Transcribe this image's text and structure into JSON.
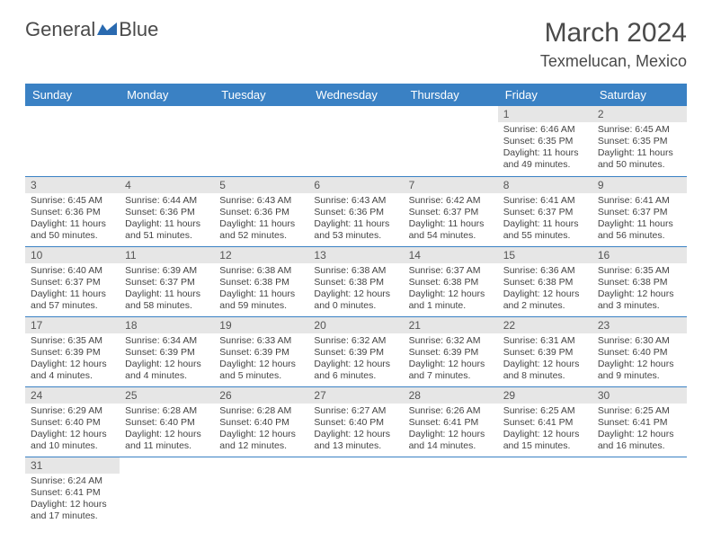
{
  "logo": {
    "text1": "General",
    "text2": "Blue",
    "color1": "#4a4a4a",
    "color2": "#2a6ab0"
  },
  "title": "March 2024",
  "location": "Texmelucan, Mexico",
  "header_bg": "#3a81c4",
  "header_fg": "#ffffff",
  "daynum_bg": "#e6e6e6",
  "row_border": "#3a81c4",
  "weekdays": [
    "Sunday",
    "Monday",
    "Tuesday",
    "Wednesday",
    "Thursday",
    "Friday",
    "Saturday"
  ],
  "weeks": [
    [
      null,
      null,
      null,
      null,
      null,
      {
        "n": "1",
        "sunrise": "Sunrise: 6:46 AM",
        "sunset": "Sunset: 6:35 PM",
        "daylight": "Daylight: 11 hours and 49 minutes."
      },
      {
        "n": "2",
        "sunrise": "Sunrise: 6:45 AM",
        "sunset": "Sunset: 6:35 PM",
        "daylight": "Daylight: 11 hours and 50 minutes."
      }
    ],
    [
      {
        "n": "3",
        "sunrise": "Sunrise: 6:45 AM",
        "sunset": "Sunset: 6:36 PM",
        "daylight": "Daylight: 11 hours and 50 minutes."
      },
      {
        "n": "4",
        "sunrise": "Sunrise: 6:44 AM",
        "sunset": "Sunset: 6:36 PM",
        "daylight": "Daylight: 11 hours and 51 minutes."
      },
      {
        "n": "5",
        "sunrise": "Sunrise: 6:43 AM",
        "sunset": "Sunset: 6:36 PM",
        "daylight": "Daylight: 11 hours and 52 minutes."
      },
      {
        "n": "6",
        "sunrise": "Sunrise: 6:43 AM",
        "sunset": "Sunset: 6:36 PM",
        "daylight": "Daylight: 11 hours and 53 minutes."
      },
      {
        "n": "7",
        "sunrise": "Sunrise: 6:42 AM",
        "sunset": "Sunset: 6:37 PM",
        "daylight": "Daylight: 11 hours and 54 minutes."
      },
      {
        "n": "8",
        "sunrise": "Sunrise: 6:41 AM",
        "sunset": "Sunset: 6:37 PM",
        "daylight": "Daylight: 11 hours and 55 minutes."
      },
      {
        "n": "9",
        "sunrise": "Sunrise: 6:41 AM",
        "sunset": "Sunset: 6:37 PM",
        "daylight": "Daylight: 11 hours and 56 minutes."
      }
    ],
    [
      {
        "n": "10",
        "sunrise": "Sunrise: 6:40 AM",
        "sunset": "Sunset: 6:37 PM",
        "daylight": "Daylight: 11 hours and 57 minutes."
      },
      {
        "n": "11",
        "sunrise": "Sunrise: 6:39 AM",
        "sunset": "Sunset: 6:37 PM",
        "daylight": "Daylight: 11 hours and 58 minutes."
      },
      {
        "n": "12",
        "sunrise": "Sunrise: 6:38 AM",
        "sunset": "Sunset: 6:38 PM",
        "daylight": "Daylight: 11 hours and 59 minutes."
      },
      {
        "n": "13",
        "sunrise": "Sunrise: 6:38 AM",
        "sunset": "Sunset: 6:38 PM",
        "daylight": "Daylight: 12 hours and 0 minutes."
      },
      {
        "n": "14",
        "sunrise": "Sunrise: 6:37 AM",
        "sunset": "Sunset: 6:38 PM",
        "daylight": "Daylight: 12 hours and 1 minute."
      },
      {
        "n": "15",
        "sunrise": "Sunrise: 6:36 AM",
        "sunset": "Sunset: 6:38 PM",
        "daylight": "Daylight: 12 hours and 2 minutes."
      },
      {
        "n": "16",
        "sunrise": "Sunrise: 6:35 AM",
        "sunset": "Sunset: 6:38 PM",
        "daylight": "Daylight: 12 hours and 3 minutes."
      }
    ],
    [
      {
        "n": "17",
        "sunrise": "Sunrise: 6:35 AM",
        "sunset": "Sunset: 6:39 PM",
        "daylight": "Daylight: 12 hours and 4 minutes."
      },
      {
        "n": "18",
        "sunrise": "Sunrise: 6:34 AM",
        "sunset": "Sunset: 6:39 PM",
        "daylight": "Daylight: 12 hours and 4 minutes."
      },
      {
        "n": "19",
        "sunrise": "Sunrise: 6:33 AM",
        "sunset": "Sunset: 6:39 PM",
        "daylight": "Daylight: 12 hours and 5 minutes."
      },
      {
        "n": "20",
        "sunrise": "Sunrise: 6:32 AM",
        "sunset": "Sunset: 6:39 PM",
        "daylight": "Daylight: 12 hours and 6 minutes."
      },
      {
        "n": "21",
        "sunrise": "Sunrise: 6:32 AM",
        "sunset": "Sunset: 6:39 PM",
        "daylight": "Daylight: 12 hours and 7 minutes."
      },
      {
        "n": "22",
        "sunrise": "Sunrise: 6:31 AM",
        "sunset": "Sunset: 6:39 PM",
        "daylight": "Daylight: 12 hours and 8 minutes."
      },
      {
        "n": "23",
        "sunrise": "Sunrise: 6:30 AM",
        "sunset": "Sunset: 6:40 PM",
        "daylight": "Daylight: 12 hours and 9 minutes."
      }
    ],
    [
      {
        "n": "24",
        "sunrise": "Sunrise: 6:29 AM",
        "sunset": "Sunset: 6:40 PM",
        "daylight": "Daylight: 12 hours and 10 minutes."
      },
      {
        "n": "25",
        "sunrise": "Sunrise: 6:28 AM",
        "sunset": "Sunset: 6:40 PM",
        "daylight": "Daylight: 12 hours and 11 minutes."
      },
      {
        "n": "26",
        "sunrise": "Sunrise: 6:28 AM",
        "sunset": "Sunset: 6:40 PM",
        "daylight": "Daylight: 12 hours and 12 minutes."
      },
      {
        "n": "27",
        "sunrise": "Sunrise: 6:27 AM",
        "sunset": "Sunset: 6:40 PM",
        "daylight": "Daylight: 12 hours and 13 minutes."
      },
      {
        "n": "28",
        "sunrise": "Sunrise: 6:26 AM",
        "sunset": "Sunset: 6:41 PM",
        "daylight": "Daylight: 12 hours and 14 minutes."
      },
      {
        "n": "29",
        "sunrise": "Sunrise: 6:25 AM",
        "sunset": "Sunset: 6:41 PM",
        "daylight": "Daylight: 12 hours and 15 minutes."
      },
      {
        "n": "30",
        "sunrise": "Sunrise: 6:25 AM",
        "sunset": "Sunset: 6:41 PM",
        "daylight": "Daylight: 12 hours and 16 minutes."
      }
    ],
    [
      {
        "n": "31",
        "sunrise": "Sunrise: 6:24 AM",
        "sunset": "Sunset: 6:41 PM",
        "daylight": "Daylight: 12 hours and 17 minutes."
      },
      null,
      null,
      null,
      null,
      null,
      null
    ]
  ]
}
